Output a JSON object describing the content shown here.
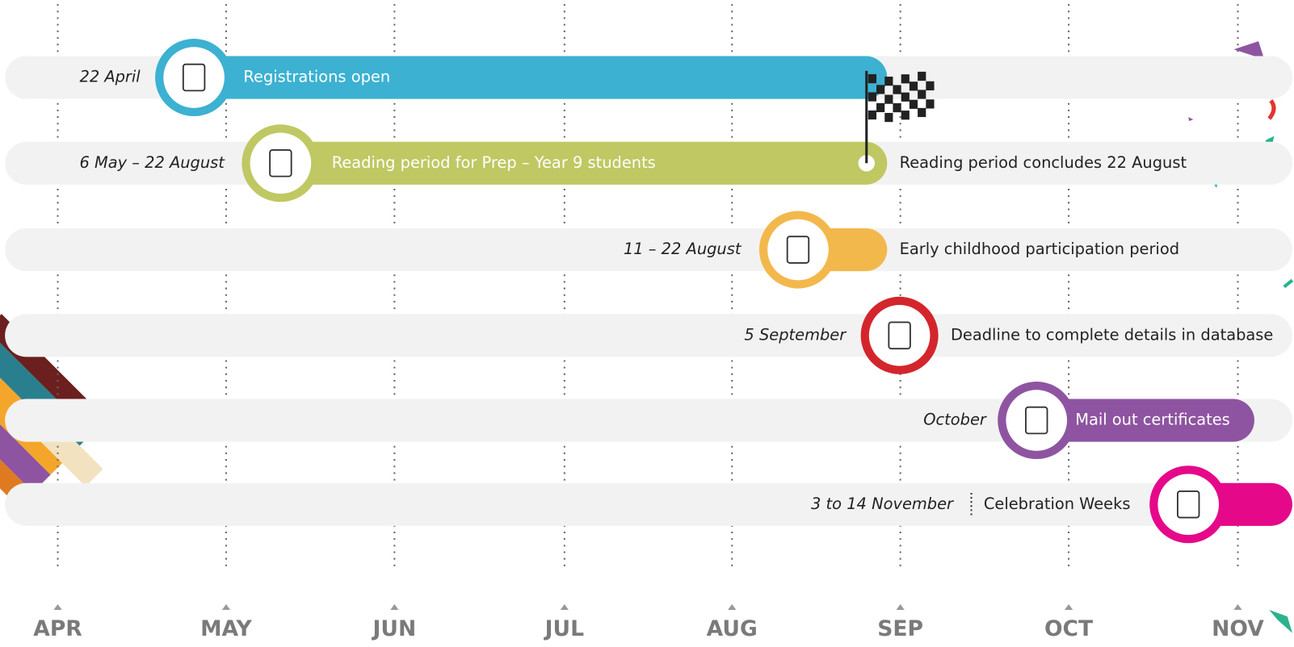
{
  "months": [
    "APR",
    "MAY",
    "JUN",
    "JUL",
    "AUG",
    "SEP",
    "OCT",
    "NOV"
  ],
  "rows": [
    {
      "date": "22 April",
      "label": "Registrations open"
    },
    {
      "date": "6 May – 22 August",
      "label": "Reading period for Prep – Year 9 students",
      "note": "Reading period concludes 22 August"
    },
    {
      "date": "11 – 22 August",
      "label": "Early childhood participation period"
    },
    {
      "date": "5 September",
      "label": "Deadline to complete details in database"
    },
    {
      "date": "October",
      "label": "Mail out certificates"
    },
    {
      "date": "3 to 14 November",
      "label": "Celebration Weeks"
    }
  ]
}
